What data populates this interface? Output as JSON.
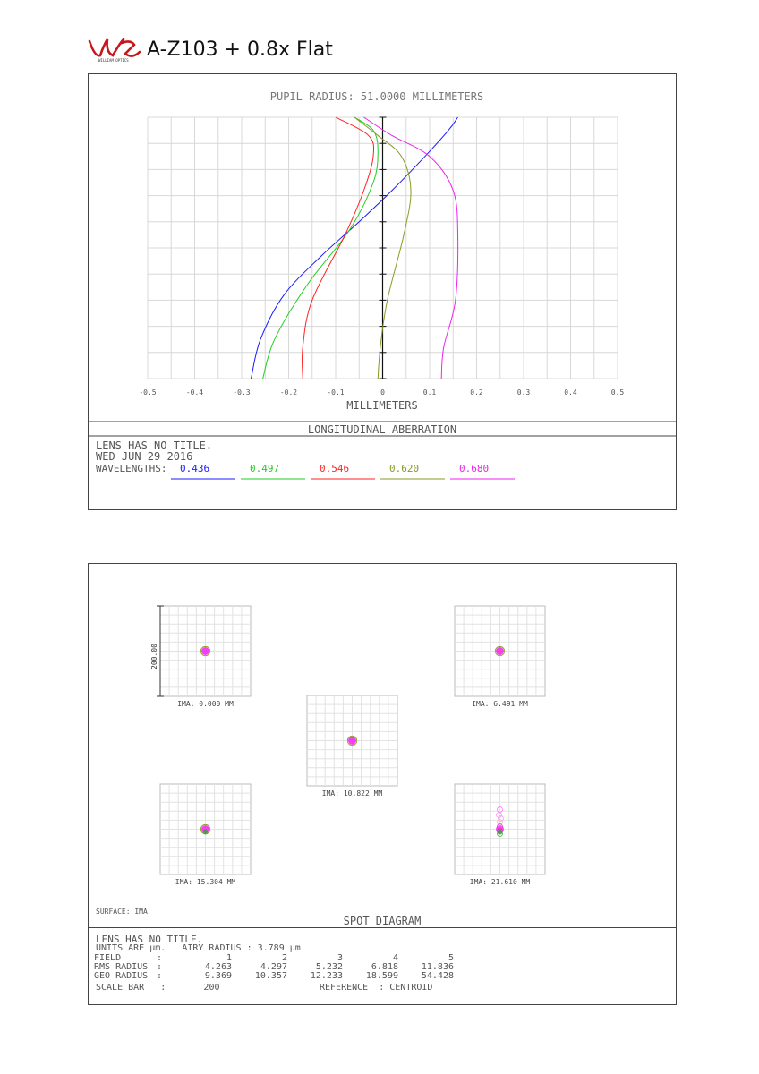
{
  "document": {
    "title": "A-Z103 + 0.8x Flat",
    "logo_icon": "william-optics-logo"
  },
  "longitudinal": {
    "chart_title": "PUPIL RADIUS: 51.0000 MILLIMETERS",
    "xlabel": "MILLIMETERS",
    "section_title": "LONGITUDINAL ABERRATION",
    "lens_title": "LENS HAS NO TITLE.",
    "date": "WED JUN 29 2016",
    "wavelengths_label": "WAVELENGTHS:",
    "x_ticks": [
      "-0.5",
      "-0.4",
      "-0.3",
      "-0.2",
      "-0.1",
      "0",
      "0.1",
      "0.2",
      "0.3",
      "0.4",
      "0.5"
    ]
  },
  "chart_data": {
    "type": "line",
    "xlabel": "MILLIMETERS",
    "title": "PUPIL RADIUS: 51.0000 MILLIMETERS",
    "xlim": [
      -0.5,
      0.5
    ],
    "ylim": [
      0,
      1
    ],
    "grid": true,
    "series": [
      {
        "name": "0.436",
        "color": "#1a1aff",
        "x": [
          -0.28,
          -0.26,
          -0.21,
          -0.13,
          -0.05,
          0.02,
          0.09,
          0.14,
          0.16
        ],
        "y": [
          0.0,
          0.15,
          0.32,
          0.47,
          0.6,
          0.72,
          0.85,
          0.95,
          1.0
        ]
      },
      {
        "name": "0.497",
        "color": "#22cc22",
        "x": [
          -0.255,
          -0.23,
          -0.16,
          -0.07,
          -0.02,
          -0.01,
          -0.02,
          -0.06
        ],
        "y": [
          0.0,
          0.15,
          0.36,
          0.57,
          0.75,
          0.87,
          0.95,
          1.0
        ]
      },
      {
        "name": "0.546",
        "color": "#ff2222",
        "x": [
          -0.17,
          -0.17,
          -0.15,
          -0.08,
          -0.04,
          -0.02,
          -0.03,
          -0.1
        ],
        "y": [
          0.0,
          0.12,
          0.3,
          0.55,
          0.72,
          0.85,
          0.93,
          1.0
        ]
      },
      {
        "name": "0.620",
        "color": "#8a9a22",
        "x": [
          -0.01,
          -0.005,
          0.01,
          0.045,
          0.06,
          0.04,
          -0.01,
          -0.06
        ],
        "y": [
          0.0,
          0.12,
          0.3,
          0.55,
          0.72,
          0.85,
          0.93,
          1.0
        ]
      },
      {
        "name": "0.680",
        "color": "#ee22ee",
        "x": [
          0.125,
          0.13,
          0.155,
          0.16,
          0.15,
          0.1,
          0.02,
          -0.04
        ],
        "y": [
          0.0,
          0.12,
          0.3,
          0.55,
          0.72,
          0.85,
          0.93,
          1.0
        ]
      }
    ]
  },
  "spot": {
    "section_title": "SPOT DIAGRAM",
    "surface_label": "SURFACE: IMA",
    "scale_label": "200.00",
    "fields": [
      {
        "label": "IMA: 0.000 MM"
      },
      {
        "label": "IMA: 6.491 MM"
      },
      {
        "label": "IMA: 10.822 MM"
      },
      {
        "label": "IMA: 15.304 MM"
      },
      {
        "label": "IMA: 21.610 MM"
      }
    ],
    "info": {
      "lens_title": "LENS HAS NO TITLE.",
      "units_line": "UNITS ARE µm.   AIRY RADIUS : 3.789 µm",
      "field_row": [
        "FIELD",
        ":",
        "1",
        "2",
        "3",
        "4",
        "5"
      ],
      "rms_row": [
        "RMS RADIUS",
        ":",
        "4.263",
        "4.297",
        "5.232",
        "6.818",
        "11.836"
      ],
      "geo_row": [
        "GEO RADIUS",
        ":",
        "9.369",
        "10.357",
        "12.233",
        "18.599",
        "54.428"
      ],
      "scale_label": "SCALE BAR",
      "scale_value": "200",
      "reference": "REFERENCE  : CENTROID"
    }
  }
}
